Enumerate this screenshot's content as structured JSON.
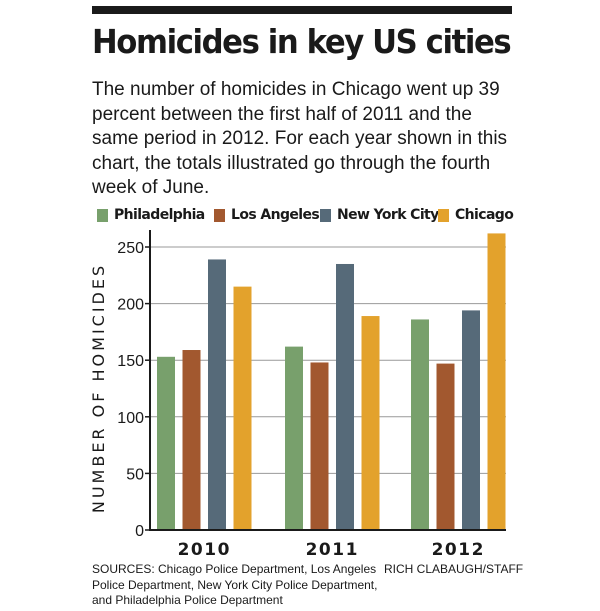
{
  "title": "Homicides in key US cities",
  "subtitle": "The number of homicides in Chicago went up 39 percent between the first half of 2011 and the same period in 2012. For each year shown in this chart, the totals illustrated go through the fourth week of June.",
  "sources": "SOURCES: Chicago Police Department, Los Angeles Police Department, New York City Police Department, and Philadelphia Police Department",
  "credit": "RICH CLABAUGH/STAFF",
  "colors": {
    "philadelphia": "#78a06c",
    "los_angeles": "#a2582f",
    "new_york": "#566a79",
    "chicago": "#e3a22c",
    "axis": "#1a1a1a",
    "grid": "#999999"
  },
  "chart_data": {
    "type": "bar",
    "title": "Homicides in key US cities",
    "xlabel": "",
    "ylabel": "NUMBER OF HOMICIDES",
    "ylim": [
      0,
      250
    ],
    "yticks": [
      0,
      50,
      100,
      150,
      200,
      250
    ],
    "grid": true,
    "legend_position": "top",
    "categories": [
      "2010",
      "2011",
      "2012"
    ],
    "series": [
      {
        "name": "Philadelphia",
        "color": "#78a06c",
        "values": [
          153,
          162,
          186
        ]
      },
      {
        "name": "Los Angeles",
        "color": "#a2582f",
        "values": [
          159,
          148,
          147
        ]
      },
      {
        "name": "New York City",
        "color": "#566a79",
        "values": [
          239,
          235,
          194
        ]
      },
      {
        "name": "Chicago",
        "color": "#e3a22c",
        "values": [
          215,
          189,
          262
        ]
      }
    ]
  }
}
